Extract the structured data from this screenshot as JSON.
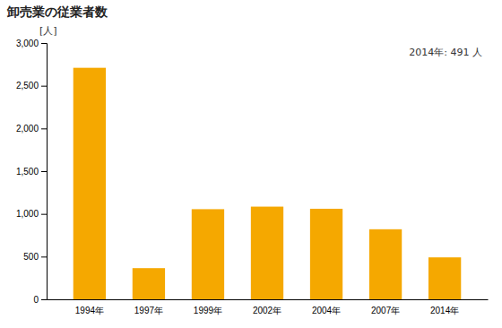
{
  "chart_data": {
    "type": "bar",
    "title": "卸売業の従業者数",
    "ylabel": "[人]",
    "annotation": "2014年: 491 人",
    "categories": [
      "1994年",
      "1997年",
      "1999年",
      "2002年",
      "2004年",
      "2007年",
      "2014年"
    ],
    "values": [
      2710,
      365,
      1055,
      1085,
      1060,
      820,
      491
    ],
    "color": "#F5A800",
    "ylim": [
      0,
      3000
    ],
    "yticks": [
      0,
      500,
      {
        "value": 1000,
        "label": "1,000"
      },
      {
        "value": 1500,
        "label": "1,500"
      },
      {
        "value": 2000,
        "label": "2,000"
      },
      {
        "value": 2500,
        "label": "2,500"
      },
      {
        "value": 3000,
        "label": "3,000"
      }
    ],
    "grid": false
  }
}
